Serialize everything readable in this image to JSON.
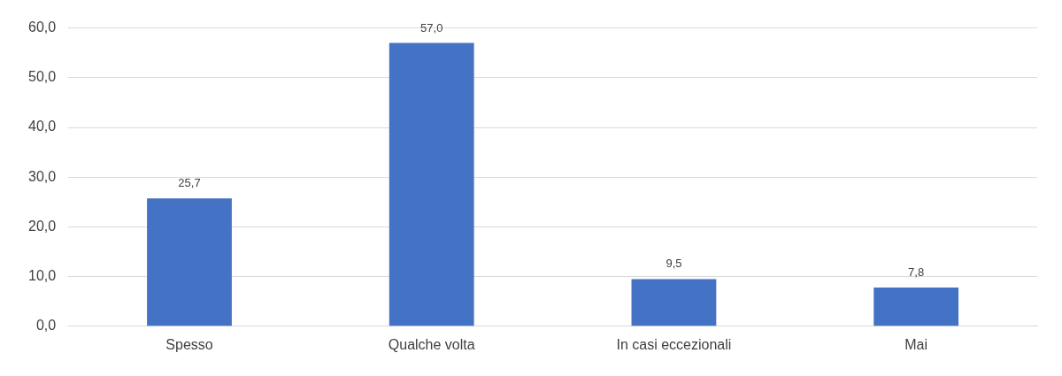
{
  "chart_data": {
    "type": "bar",
    "categories": [
      "Spesso",
      "Qualche volta",
      "In casi eccezionali",
      "Mai"
    ],
    "values": [
      25.7,
      57.0,
      9.5,
      7.8
    ],
    "color": "#4472c4",
    "value_labels": [
      "25,7",
      "57,0",
      "9,5",
      "7,8"
    ],
    "ylim": [
      0,
      60
    ],
    "yticks": [
      {
        "value": 0,
        "label": "0,0"
      },
      {
        "value": 10,
        "label": "10,0"
      },
      {
        "value": 20,
        "label": "20,0"
      },
      {
        "value": 30,
        "label": "30,0"
      },
      {
        "value": 40,
        "label": "40,0"
      },
      {
        "value": 50,
        "label": "50,0"
      },
      {
        "value": 60,
        "label": "60,0"
      }
    ],
    "grid": "y",
    "legend": false
  }
}
